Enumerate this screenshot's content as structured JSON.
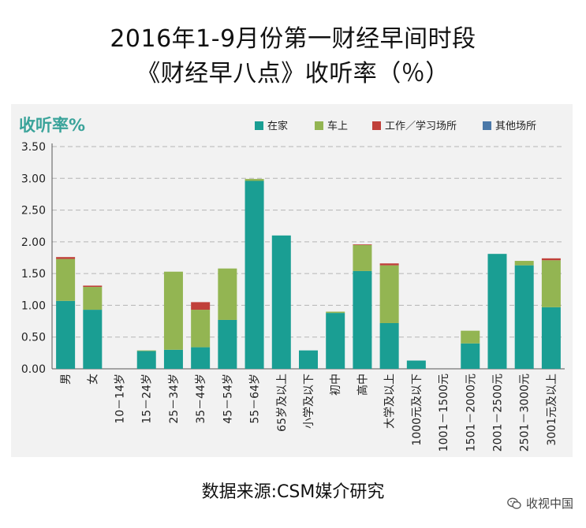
{
  "title_line1": "2016年1-9月份第一财经早间时段",
  "title_line2": "《财经早八点》收听率（％）",
  "source": "数据来源:CSM媒介研究",
  "watermark": "收视中国",
  "watermark_icon": "wechat-icon",
  "chart_data": {
    "type": "bar",
    "stacked": true,
    "title": "",
    "ylabel": "收听率%",
    "xlabel": "",
    "ylim": [
      0,
      3.5
    ],
    "yticks": [
      "0.00",
      "0.50",
      "1.00",
      "1.50",
      "2.00",
      "2.50",
      "3.00",
      "3.50"
    ],
    "grid": "horizontal-dashed",
    "legend_position": "top-right",
    "categories": [
      "男",
      "女",
      "10－14岁",
      "15－24岁",
      "25－34岁",
      "35－44岁",
      "45－54岁",
      "55－64岁",
      "65岁及以上",
      "小学及以下",
      "初中",
      "高中",
      "大学及以上",
      "1000元及以下",
      "1001－1500元",
      "1501－2000元",
      "2001－2500元",
      "2501－3000元",
      "3001元及以上"
    ],
    "series": [
      {
        "name": "在家",
        "color": "#1a9e93",
        "values": [
          1.07,
          0.93,
          0,
          0.28,
          0.3,
          0.34,
          0.77,
          2.96,
          2.1,
          0.29,
          0.88,
          1.54,
          0.72,
          0.13,
          0,
          0.4,
          1.81,
          1.63,
          0.97
        ]
      },
      {
        "name": "车上",
        "color": "#93b552",
        "values": [
          0.66,
          0.36,
          0,
          0.01,
          1.23,
          0.59,
          0.81,
          0.03,
          0,
          0,
          0.02,
          0.41,
          0.91,
          0,
          0,
          0.2,
          0,
          0.07,
          0.74
        ]
      },
      {
        "name": "工作／学习场所",
        "color": "#c0403a",
        "values": [
          0.03,
          0.02,
          0,
          0,
          0,
          0.12,
          0,
          0,
          0,
          0,
          0,
          0.01,
          0.03,
          0,
          0,
          0,
          0,
          0,
          0.03
        ]
      },
      {
        "name": "其他场所",
        "color": "#4a78a8",
        "values": [
          0,
          0,
          0,
          0,
          0,
          0,
          0,
          0,
          0,
          0,
          0,
          0,
          0,
          0,
          0,
          0,
          0,
          0,
          0
        ]
      }
    ]
  }
}
